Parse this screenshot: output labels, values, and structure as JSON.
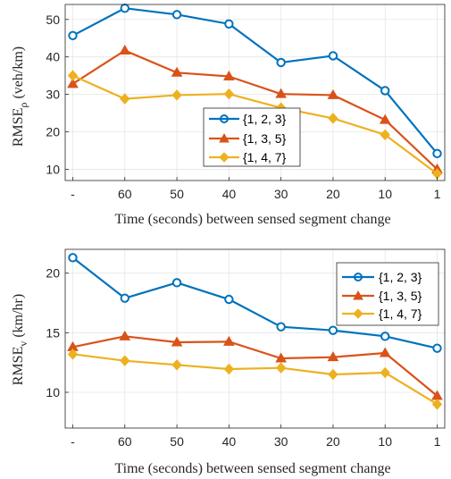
{
  "colors": {
    "series_blue": "#0072BD",
    "series_orange": "#D95319",
    "series_yellow": "#EDB120"
  },
  "chart_data": [
    {
      "type": "line",
      "categories": [
        "-",
        "60",
        "50",
        "40",
        "30",
        "20",
        "10",
        "1"
      ],
      "xlabel": "Time (seconds) between sensed segment change",
      "ylabel_main": "RMSE",
      "ylabel_sub": "ρ",
      "ylabel_unit": "(veh/km)",
      "ylim": [
        7,
        54
      ],
      "yticks": [
        10,
        20,
        30,
        40,
        50
      ],
      "grid": true,
      "legend_position": "lower-middle",
      "series": [
        {
          "name": "{1, 2, 3}",
          "marker": "circle",
          "values": [
            45.7,
            53.0,
            51.3,
            48.8,
            38.5,
            40.3,
            31.0,
            14.2
          ]
        },
        {
          "name": "{1, 3, 5}",
          "marker": "triangle",
          "values": [
            32.8,
            41.7,
            35.8,
            34.8,
            30.1,
            29.8,
            23.2,
            10.0
          ]
        },
        {
          "name": "{1, 4, 7}",
          "marker": "diamond",
          "values": [
            35.0,
            28.8,
            29.8,
            30.1,
            26.4,
            23.6,
            19.2,
            8.8
          ]
        }
      ]
    },
    {
      "type": "line",
      "categories": [
        "-",
        "60",
        "50",
        "40",
        "30",
        "20",
        "10",
        "1"
      ],
      "xlabel": "Time (seconds) between sensed segment change",
      "ylabel_main": "RMSE",
      "ylabel_sub": "v",
      "ylabel_unit": "(km/hr)",
      "ylim": [
        7,
        22
      ],
      "yticks": [
        10,
        15,
        20
      ],
      "grid": true,
      "legend_position": "top-right",
      "series": [
        {
          "name": "{1, 2, 3}",
          "marker": "circle",
          "values": [
            21.3,
            17.9,
            19.2,
            17.8,
            15.5,
            15.2,
            14.7,
            13.7
          ]
        },
        {
          "name": "{1, 3, 5}",
          "marker": "triangle",
          "values": [
            13.8,
            14.7,
            14.2,
            14.25,
            12.85,
            12.95,
            13.3,
            9.7
          ]
        },
        {
          "name": "{1, 4, 7}",
          "marker": "diamond",
          "values": [
            13.2,
            12.65,
            12.3,
            11.95,
            12.05,
            11.5,
            11.65,
            9.0
          ]
        }
      ]
    }
  ]
}
